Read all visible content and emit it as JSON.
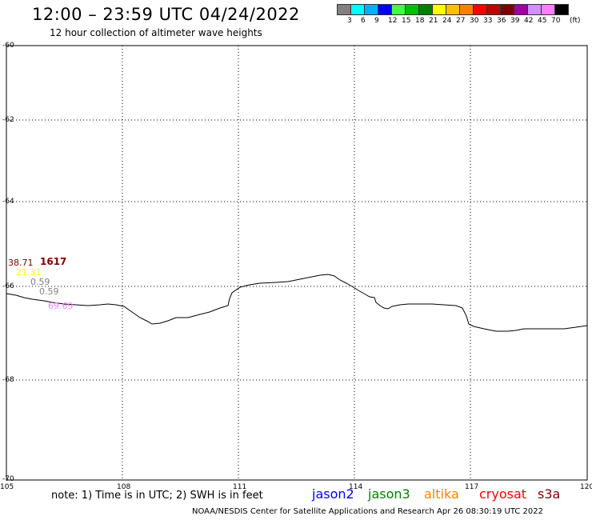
{
  "title": "12:00 – 23:59 UTC 04/24/2022",
  "subtitle": "12 hour collection of altimeter wave heights",
  "legend": {
    "colors": [
      "#808080",
      "#00ffff",
      "#00b0ff",
      "#0000ff",
      "#40ff40",
      "#00c000",
      "#008000",
      "#ffff00",
      "#ffc000",
      "#ff8000",
      "#ff0000",
      "#c00000",
      "#800000",
      "#a000a0",
      "#d090ff",
      "#ff80ff",
      "#000000"
    ],
    "labels": [
      "3",
      "6",
      "9",
      "12",
      "15",
      "18",
      "21",
      "24",
      "27",
      "30",
      "33",
      "36",
      "39",
      "42",
      "45",
      "70"
    ],
    "unit": "(ft)"
  },
  "axes": {
    "y_labels": [
      "-60",
      "-62",
      "-64",
      "-66",
      "-68",
      "-70"
    ],
    "x_labels": [
      "105",
      "108",
      "111",
      "114",
      "117",
      "120"
    ]
  },
  "data_labels": [
    {
      "text": "38.71",
      "color": "#800000"
    },
    {
      "text": "1617",
      "color": "#800000"
    },
    {
      "text": "21.31",
      "color": "#ffff00"
    },
    {
      "text": "0.59",
      "color": "#808080"
    },
    {
      "text": "0.59",
      "color": "#808080"
    },
    {
      "text": "69.69",
      "color": "#ff80ff"
    }
  ],
  "note": "note:  1) Time is in UTC;  2) SWH is in feet",
  "satellites": [
    {
      "name": "jason2",
      "color": "#0000ff"
    },
    {
      "name": "jason3",
      "color": "#008000"
    },
    {
      "name": "altika",
      "color": "#ff8000"
    },
    {
      "name": "cryosat",
      "color": "#ff0000"
    },
    {
      "name": "s3a",
      "color": "#800000"
    }
  ],
  "credit": "NOAA/NESDIS Center for Satellite Applications and Research   Apr 26 08:30:19 UTC 2022"
}
